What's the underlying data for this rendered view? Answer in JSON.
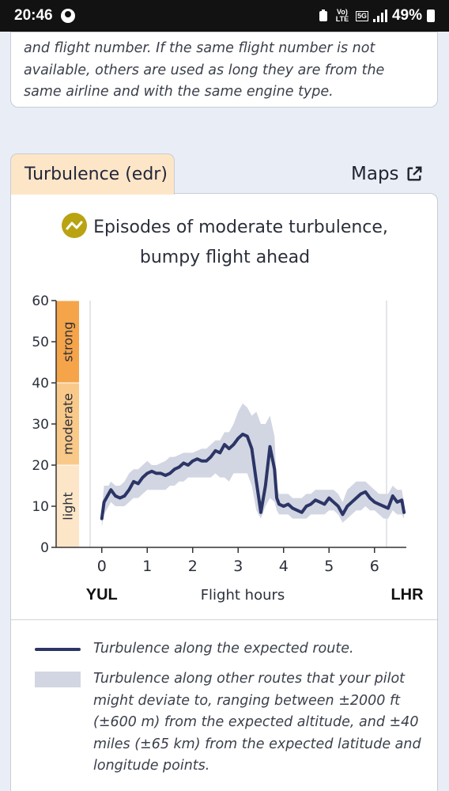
{
  "status_bar": {
    "time": "20:46",
    "battery": "49%",
    "network_badge_volte": "Vo) LTE",
    "network_badge_5g": "5G",
    "icons": [
      "account-circle-icon",
      "battery-saver-icon",
      "volte-icon",
      "5g-icon",
      "signal-icon",
      "battery-icon"
    ]
  },
  "intro_card": {
    "text": "and flight number. If the same flight number is not available, others are used as long they are from the same airline and with the same engine type."
  },
  "tab": {
    "label": "Turbulence (edr)"
  },
  "maps_link": {
    "label": "Maps",
    "icon": "external-link-icon"
  },
  "headline": {
    "line1": "Episodes of moderate turbulence,",
    "line2": "bumpy flight ahead",
    "icon": "moderate-turbulence-icon",
    "icon_color": "#b9a311"
  },
  "chart_data": {
    "type": "line",
    "xlabel": "Flight hours",
    "origin": "YUL",
    "destination": "LHR",
    "x_ticks": [
      0,
      1,
      2,
      3,
      4,
      5,
      6
    ],
    "y_ticks": [
      0,
      10,
      20,
      30,
      40,
      50,
      60
    ],
    "xlim": [
      -0.5,
      6.7
    ],
    "ylim": [
      0,
      60
    ],
    "bands": [
      {
        "label": "light",
        "from": 0,
        "to": 20,
        "color": "#fde6c8"
      },
      {
        "label": "moderate",
        "from": 20,
        "to": 40,
        "color": "#f9c98a"
      },
      {
        "label": "strong",
        "from": 40,
        "to": 60,
        "color": "#f5a44a"
      }
    ],
    "series": [
      {
        "name": "Turbulence along the expected route.",
        "color": "#2b3566",
        "x": [
          0.0,
          0.05,
          0.1,
          0.15,
          0.2,
          0.3,
          0.4,
          0.5,
          0.6,
          0.7,
          0.8,
          0.9,
          1.0,
          1.1,
          1.2,
          1.3,
          1.4,
          1.5,
          1.6,
          1.7,
          1.8,
          1.9,
          2.0,
          2.1,
          2.2,
          2.3,
          2.4,
          2.5,
          2.6,
          2.7,
          2.8,
          2.9,
          3.0,
          3.1,
          3.2,
          3.3,
          3.4,
          3.5,
          3.6,
          3.7,
          3.8,
          3.85,
          3.9,
          4.0,
          4.1,
          4.2,
          4.3,
          4.4,
          4.5,
          4.6,
          4.7,
          4.8,
          4.9,
          5.0,
          5.1,
          5.2,
          5.3,
          5.4,
          5.5,
          5.6,
          5.7,
          5.8,
          5.9,
          6.0,
          6.1,
          6.2,
          6.3,
          6.4,
          6.5,
          6.6,
          6.65
        ],
        "values": [
          7,
          11,
          12,
          13,
          14,
          12.5,
          12,
          12.5,
          14,
          16,
          15.5,
          17,
          18,
          18.5,
          18,
          18,
          17.5,
          18,
          19,
          19.5,
          20.5,
          20,
          21,
          21.5,
          21,
          21,
          22,
          23.5,
          23,
          25,
          24,
          25,
          26.5,
          27.5,
          27,
          24,
          16,
          8.5,
          15,
          24.5,
          19,
          12,
          10.5,
          10,
          10.5,
          9.5,
          9,
          8.5,
          10,
          10.5,
          11.5,
          11,
          10.5,
          12,
          11,
          10,
          8,
          10,
          11,
          12,
          13,
          13.5,
          12,
          11,
          10.5,
          10,
          9.5,
          12.5,
          11,
          11.5,
          8.5
        ],
        "upper": [
          9,
          15,
          15,
          15,
          16,
          15,
          15,
          16,
          18,
          19,
          19,
          20,
          21,
          20,
          20,
          20.5,
          21,
          22,
          22,
          22.5,
          23,
          23,
          23,
          23.5,
          24,
          24,
          25,
          26,
          26,
          28,
          28,
          30,
          33,
          35,
          34,
          32,
          33,
          30,
          30,
          32,
          27,
          15,
          13,
          13,
          13,
          12,
          12,
          12,
          13,
          13,
          14,
          14,
          14,
          14,
          14,
          13,
          11,
          14,
          15,
          16,
          16,
          16,
          15,
          14,
          13,
          13,
          13,
          15,
          14,
          14,
          11
        ],
        "lower": [
          5,
          8,
          9,
          10,
          11,
          10,
          10,
          10,
          11,
          12,
          12,
          13,
          14,
          14,
          14,
          14,
          14,
          15,
          15,
          16,
          16,
          17,
          17,
          17,
          17,
          17,
          17,
          18,
          17,
          17,
          16,
          18,
          18,
          18,
          18,
          15,
          9,
          7,
          10,
          12,
          11,
          9,
          8,
          8,
          8,
          7,
          7,
          7,
          7,
          8,
          8,
          8,
          8,
          9,
          9,
          8,
          6,
          7,
          8,
          9,
          9,
          10,
          9,
          9,
          8,
          7,
          7,
          9,
          8,
          8,
          7
        ]
      }
    ]
  },
  "legend": {
    "route_text": "Turbulence along the expected route.",
    "band_text": "Turbulence along other routes that your pilot might deviate to, ranging between ±2000 ft (±600 m) from the expected altitude, and ±40 miles (±65 km) from the expected latitude and longitude points."
  }
}
